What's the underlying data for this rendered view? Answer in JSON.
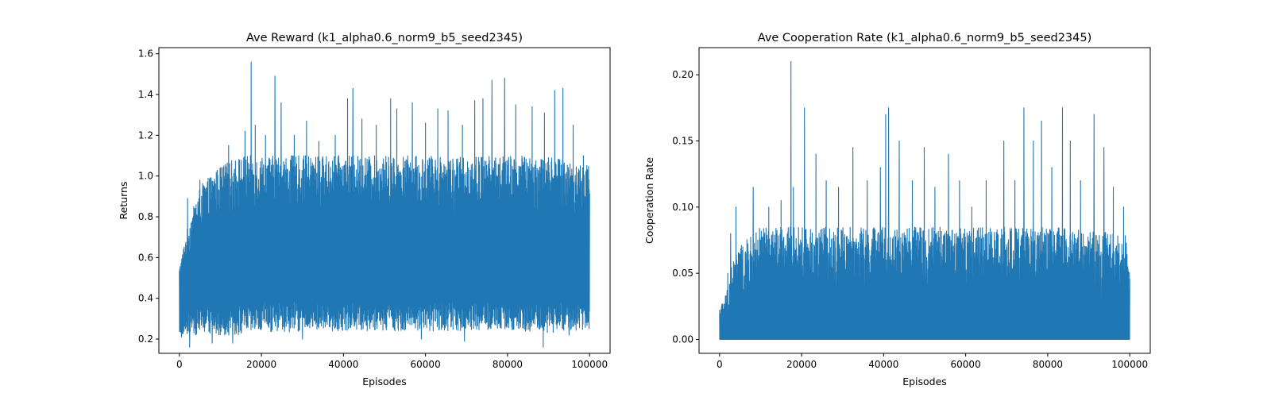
{
  "figure": {
    "background": "#ffffff",
    "line_color": "#1f77b4"
  },
  "chart_data": [
    {
      "type": "line",
      "title": "Ave Reward (k1_alpha0.6_norm9_b5_seed2345)",
      "xlabel": "Episodes",
      "ylabel": "Returns",
      "xlim": [
        -5000,
        105000
      ],
      "ylim": [
        0.13,
        1.63
      ],
      "xticks": [
        0,
        20000,
        40000,
        60000,
        80000,
        100000
      ],
      "xtick_labels": [
        "0",
        "20000",
        "40000",
        "60000",
        "80000",
        "100000"
      ],
      "yticks": [
        0.2,
        0.4,
        0.6,
        0.8,
        1.0,
        1.2,
        1.4,
        1.6
      ],
      "ytick_labels": [
        "0.2",
        "0.4",
        "0.6",
        "0.8",
        "1.0",
        "1.2",
        "1.4",
        "1.6"
      ],
      "grid": false,
      "series": [
        {
          "color": "#1f77b4",
          "x": [
            0,
            2000,
            5000,
            10000,
            15000,
            17500,
            20000,
            23000,
            30000,
            40000,
            50000,
            60000,
            70000,
            80000,
            90000,
            100000
          ],
          "mean": [
            0.42,
            0.5,
            0.58,
            0.6,
            0.62,
            0.62,
            0.62,
            0.62,
            0.62,
            0.62,
            0.62,
            0.62,
            0.62,
            0.62,
            0.62,
            0.62
          ],
          "upper": [
            0.55,
            0.75,
            0.95,
            1.05,
            1.1,
            1.1,
            1.1,
            1.1,
            1.1,
            1.1,
            1.1,
            1.1,
            1.1,
            1.1,
            1.1,
            1.05
          ],
          "lower": [
            0.22,
            0.22,
            0.22,
            0.22,
            0.22,
            0.22,
            0.23,
            0.23,
            0.24,
            0.24,
            0.24,
            0.24,
            0.24,
            0.24,
            0.23,
            0.25
          ],
          "peaks": [
            {
              "x": 2000,
              "y": 0.89
            },
            {
              "x": 5000,
              "y": 0.98
            },
            {
              "x": 8000,
              "y": 1.12
            },
            {
              "x": 12000,
              "y": 1.15
            },
            {
              "x": 16000,
              "y": 1.22
            },
            {
              "x": 17500,
              "y": 1.56
            },
            {
              "x": 18500,
              "y": 1.25
            },
            {
              "x": 21000,
              "y": 1.2
            },
            {
              "x": 23300,
              "y": 1.49
            },
            {
              "x": 24800,
              "y": 1.36
            },
            {
              "x": 28000,
              "y": 1.2
            },
            {
              "x": 31000,
              "y": 1.27
            },
            {
              "x": 34000,
              "y": 1.17
            },
            {
              "x": 38000,
              "y": 1.2
            },
            {
              "x": 41000,
              "y": 1.38
            },
            {
              "x": 42300,
              "y": 1.43
            },
            {
              "x": 44500,
              "y": 1.28
            },
            {
              "x": 48000,
              "y": 1.25
            },
            {
              "x": 51500,
              "y": 1.38
            },
            {
              "x": 53000,
              "y": 1.33
            },
            {
              "x": 56800,
              "y": 1.36
            },
            {
              "x": 60000,
              "y": 1.26
            },
            {
              "x": 63000,
              "y": 1.33
            },
            {
              "x": 65500,
              "y": 1.32
            },
            {
              "x": 69000,
              "y": 1.25
            },
            {
              "x": 72000,
              "y": 1.37
            },
            {
              "x": 74000,
              "y": 1.38
            },
            {
              "x": 76200,
              "y": 1.47
            },
            {
              "x": 79300,
              "y": 1.48
            },
            {
              "x": 82000,
              "y": 1.35
            },
            {
              "x": 86000,
              "y": 1.34
            },
            {
              "x": 89000,
              "y": 1.31
            },
            {
              "x": 91500,
              "y": 1.42
            },
            {
              "x": 93500,
              "y": 1.43
            },
            {
              "x": 96000,
              "y": 1.25
            },
            {
              "x": 98500,
              "y": 1.1
            }
          ],
          "troughs": [
            {
              "x": 500,
              "y": 0.21
            },
            {
              "x": 2500,
              "y": 0.16
            },
            {
              "x": 8000,
              "y": 0.18
            },
            {
              "x": 13000,
              "y": 0.18
            },
            {
              "x": 30000,
              "y": 0.2
            },
            {
              "x": 59000,
              "y": 0.2
            },
            {
              "x": 69500,
              "y": 0.19
            },
            {
              "x": 88700,
              "y": 0.16
            },
            {
              "x": 95000,
              "y": 0.22
            }
          ]
        }
      ]
    },
    {
      "type": "line",
      "title": "Ave Cooperation Rate (k1_alpha0.6_norm9_b5_seed2345)",
      "xlabel": "Episodes",
      "ylabel": "Cooperation Rate",
      "xlim": [
        -5000,
        105000
      ],
      "ylim": [
        -0.0105,
        0.2205
      ],
      "xticks": [
        0,
        20000,
        40000,
        60000,
        80000,
        100000
      ],
      "xtick_labels": [
        "0",
        "20000",
        "40000",
        "60000",
        "80000",
        "100000"
      ],
      "yticks": [
        0.0,
        0.05,
        0.1,
        0.15,
        0.2
      ],
      "ytick_labels": [
        "0.00",
        "0.05",
        "0.10",
        "0.15",
        "0.20"
      ],
      "grid": false,
      "series": [
        {
          "color": "#1f77b4",
          "x": [
            0,
            1000,
            2000,
            3000,
            5000,
            8000,
            10000,
            20000,
            40000,
            60000,
            80000,
            99000,
            100000
          ],
          "mean": [
            0.0,
            0.0,
            0.0,
            0.0,
            0.0,
            0.0,
            0.0,
            0.0,
            0.0,
            0.0,
            0.0,
            0.0,
            0.0
          ],
          "upper": [
            0.025,
            0.03,
            0.04,
            0.06,
            0.07,
            0.08,
            0.085,
            0.085,
            0.085,
            0.085,
            0.085,
            0.08,
            0.05
          ],
          "lower": [
            0.0,
            0.0,
            0.0,
            0.0,
            0.0,
            0.0,
            0.0,
            0.0,
            0.0,
            0.0,
            0.0,
            0.0,
            0.0
          ],
          "peaks": [
            {
              "x": 2000,
              "y": 0.05
            },
            {
              "x": 2700,
              "y": 0.08
            },
            {
              "x": 4000,
              "y": 0.1
            },
            {
              "x": 8200,
              "y": 0.115
            },
            {
              "x": 12000,
              "y": 0.1
            },
            {
              "x": 15000,
              "y": 0.105
            },
            {
              "x": 17400,
              "y": 0.21
            },
            {
              "x": 18000,
              "y": 0.115
            },
            {
              "x": 20700,
              "y": 0.175
            },
            {
              "x": 23500,
              "y": 0.14
            },
            {
              "x": 26000,
              "y": 0.12
            },
            {
              "x": 29000,
              "y": 0.115
            },
            {
              "x": 32500,
              "y": 0.145
            },
            {
              "x": 36000,
              "y": 0.12
            },
            {
              "x": 39200,
              "y": 0.13
            },
            {
              "x": 40500,
              "y": 0.17
            },
            {
              "x": 41200,
              "y": 0.175
            },
            {
              "x": 43800,
              "y": 0.15
            },
            {
              "x": 47000,
              "y": 0.12
            },
            {
              "x": 49900,
              "y": 0.145
            },
            {
              "x": 52500,
              "y": 0.115
            },
            {
              "x": 55800,
              "y": 0.14
            },
            {
              "x": 58500,
              "y": 0.12
            },
            {
              "x": 61500,
              "y": 0.1
            },
            {
              "x": 65000,
              "y": 0.12
            },
            {
              "x": 69300,
              "y": 0.15
            },
            {
              "x": 72000,
              "y": 0.12
            },
            {
              "x": 74200,
              "y": 0.175
            },
            {
              "x": 76500,
              "y": 0.15
            },
            {
              "x": 78500,
              "y": 0.165
            },
            {
              "x": 81000,
              "y": 0.13
            },
            {
              "x": 83600,
              "y": 0.175
            },
            {
              "x": 85500,
              "y": 0.15
            },
            {
              "x": 88000,
              "y": 0.12
            },
            {
              "x": 91300,
              "y": 0.17
            },
            {
              "x": 93700,
              "y": 0.145
            },
            {
              "x": 96000,
              "y": 0.115
            },
            {
              "x": 98500,
              "y": 0.1
            }
          ],
          "troughs": []
        }
      ]
    }
  ]
}
